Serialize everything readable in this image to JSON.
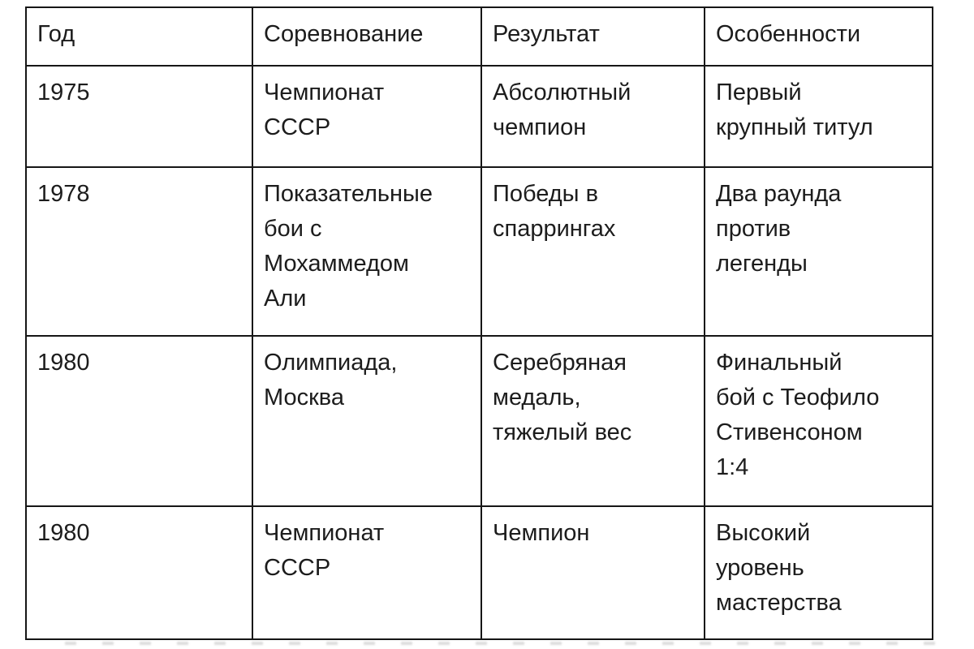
{
  "table": {
    "border_color": "#161616",
    "text_color": "#1c1c1c",
    "background": "#ffffff",
    "headers": {
      "year": "Год",
      "competition": "Соревнование",
      "result": "Результат",
      "features": "Особенности"
    },
    "rows": [
      {
        "year": "1975",
        "competition": "Чемпионат\nСССР",
        "result": "Абсолютный\nчемпион",
        "features": "Первый\nкрупный титул"
      },
      {
        "year": "1978",
        "competition": "Показательные\nбои с\nМохаммедом\nАли",
        "result": "Победы в\nспаррингах",
        "features": "Два раунда\nпротив\nлегенды"
      },
      {
        "year": "1980",
        "competition": "Олимпиада,\nМосква",
        "result": "Серебряная\nмедаль,\nтяжелый вес",
        "features": "Финальный\nбой с Теофило\nСтивенсоном\n1:4"
      },
      {
        "year": "1980",
        "competition": "Чемпионат\nСССР",
        "result": "Чемпион",
        "features": "Высокий\nуровень\nмастерства"
      }
    ]
  }
}
